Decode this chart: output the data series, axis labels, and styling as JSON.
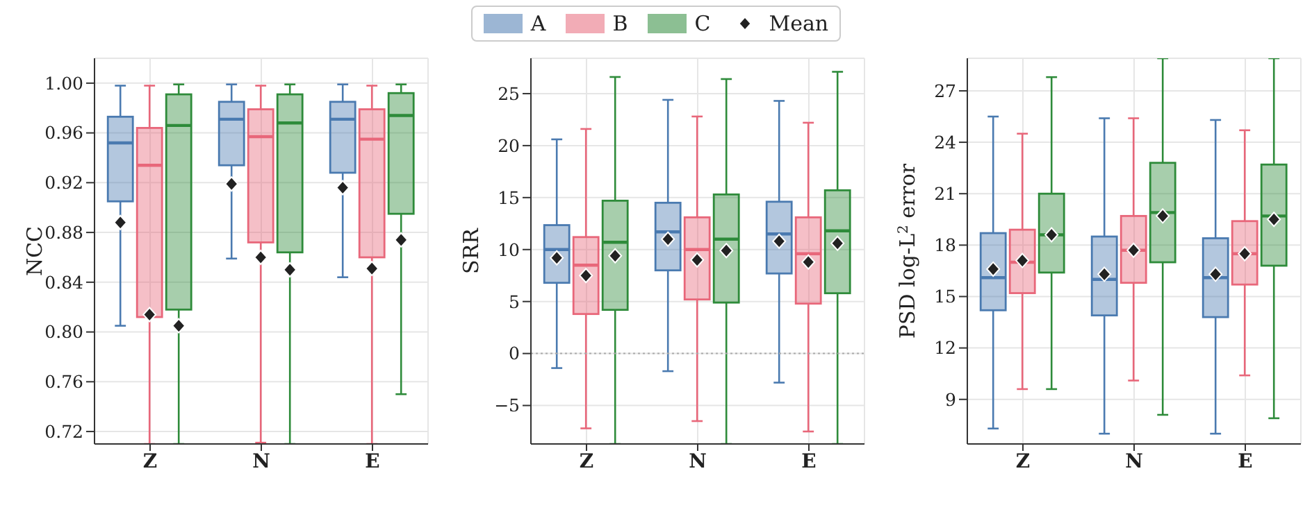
{
  "chart_data": [
    {
      "type": "box",
      "ylabel": "NCC",
      "categories": [
        "Z",
        "N",
        "E"
      ],
      "ylim": [
        0.71,
        1.02
      ],
      "grid": true,
      "legend": "top",
      "yticks": [
        {
          "value": 0.72,
          "label": "0.72"
        },
        {
          "value": 0.76,
          "label": "0.76"
        },
        {
          "value": 0.8,
          "label": "0.80"
        },
        {
          "value": 0.84,
          "label": "0.84"
        },
        {
          "value": 0.88,
          "label": "0.88"
        },
        {
          "value": 0.92,
          "label": "0.92"
        },
        {
          "value": 0.96,
          "label": "0.96"
        },
        {
          "value": 1.0,
          "label": "1.00"
        }
      ],
      "series": [
        {
          "name": "A",
          "color": "#4a7ab0",
          "boxes": [
            {
              "low": 0.805,
              "q1": 0.905,
              "median": 0.952,
              "q3": 0.973,
              "high": 0.998
            },
            {
              "low": 0.859,
              "q1": 0.934,
              "median": 0.971,
              "q3": 0.985,
              "high": 0.999
            },
            {
              "low": 0.844,
              "q1": 0.928,
              "median": 0.971,
              "q3": 0.985,
              "high": 0.999
            }
          ]
        },
        {
          "name": "B",
          "color": "#e8677a",
          "boxes": [
            {
              "low": 0.71,
              "q1": 0.812,
              "median": 0.934,
              "q3": 0.964,
              "high": 0.998
            },
            {
              "low": 0.711,
              "q1": 0.872,
              "median": 0.957,
              "q3": 0.979,
              "high": 0.998
            },
            {
              "low": 0.71,
              "q1": 0.86,
              "median": 0.955,
              "q3": 0.979,
              "high": 0.998
            }
          ]
        },
        {
          "name": "C",
          "color": "#2e8b3a",
          "boxes": [
            {
              "low": 0.71,
              "q1": 0.818,
              "median": 0.966,
              "q3": 0.991,
              "high": 0.999
            },
            {
              "low": 0.71,
              "q1": 0.864,
              "median": 0.968,
              "q3": 0.991,
              "high": 0.999
            },
            {
              "low": 0.75,
              "q1": 0.895,
              "median": 0.974,
              "q3": 0.992,
              "high": 0.999
            }
          ]
        },
        {
          "name": "Mean",
          "type": "scatter",
          "color": "#222222",
          "marker": "diamond",
          "x": [
            "Z",
            "Z",
            "Z",
            "N",
            "N",
            "N",
            "E",
            "E",
            "E"
          ],
          "values": [
            0.888,
            0.814,
            0.805,
            0.919,
            0.86,
            0.85,
            0.916,
            0.851,
            0.874
          ]
        }
      ]
    },
    {
      "type": "box",
      "ylabel": "SRR",
      "categories": [
        "Z",
        "N",
        "E"
      ],
      "ylim": [
        -8.7,
        28.4
      ],
      "grid": true,
      "yticks": [
        {
          "value": -5,
          "label": "−5"
        },
        0,
        5,
        10,
        15,
        20,
        25
      ],
      "ref_lines": [
        {
          "axis": "y",
          "value": 0,
          "color": "#aaaaaa",
          "line_style": "dotted"
        }
      ],
      "series": [
        {
          "name": "A",
          "color": "#4a7ab0",
          "boxes": [
            {
              "low": -1.4,
              "q1": 6.8,
              "median": 10.0,
              "q3": 12.35,
              "high": 20.6
            },
            {
              "low": -1.7,
              "q1": 8.0,
              "median": 11.7,
              "q3": 14.5,
              "high": 24.4
            },
            {
              "low": -2.8,
              "q1": 7.7,
              "median": 11.5,
              "q3": 14.6,
              "high": 24.3
            }
          ]
        },
        {
          "name": "B",
          "color": "#e8677a",
          "boxes": [
            {
              "low": -7.2,
              "q1": 3.8,
              "median": 8.5,
              "q3": 11.2,
              "high": 21.6
            },
            {
              "low": -6.5,
              "q1": 5.2,
              "median": 10.0,
              "q3": 13.1,
              "high": 22.8
            },
            {
              "low": -7.5,
              "q1": 4.8,
              "median": 9.6,
              "q3": 13.1,
              "high": 22.2
            }
          ]
        },
        {
          "name": "C",
          "color": "#2e8b3a",
          "boxes": [
            {
              "low": -8.7,
              "q1": 4.2,
              "median": 10.7,
              "q3": 14.7,
              "high": 26.6
            },
            {
              "low": -8.7,
              "q1": 4.9,
              "median": 11.0,
              "q3": 15.3,
              "high": 26.4
            },
            {
              "low": -8.7,
              "q1": 5.8,
              "median": 11.8,
              "q3": 15.7,
              "high": 27.1
            }
          ]
        },
        {
          "name": "Mean",
          "type": "scatter",
          "color": "#222222",
          "marker": "diamond",
          "x": [
            "Z",
            "Z",
            "Z",
            "N",
            "N",
            "N",
            "E",
            "E",
            "E"
          ],
          "values": [
            9.2,
            7.5,
            9.4,
            11.0,
            9.0,
            9.9,
            10.8,
            8.8,
            10.6
          ]
        }
      ]
    },
    {
      "type": "box",
      "ylabel": "PSD log-L$^{2}$ error",
      "categories": [
        "Z",
        "N",
        "E"
      ],
      "ylim": [
        6.4,
        28.9
      ],
      "grid": true,
      "yticks": [
        9,
        12,
        15,
        18,
        21,
        24,
        27
      ],
      "series": [
        {
          "name": "A",
          "color": "#4a7ab0",
          "boxes": [
            {
              "low": 7.3,
              "q1": 14.2,
              "median": 16.1,
              "q3": 18.7,
              "high": 25.5
            },
            {
              "low": 7.0,
              "q1": 13.9,
              "median": 16.0,
              "q3": 18.5,
              "high": 25.4
            },
            {
              "low": 7.0,
              "q1": 13.8,
              "median": 16.1,
              "q3": 18.4,
              "high": 25.3
            }
          ]
        },
        {
          "name": "B",
          "color": "#e8677a",
          "boxes": [
            {
              "low": 9.6,
              "q1": 15.2,
              "median": 17.0,
              "q3": 18.9,
              "high": 24.5
            },
            {
              "low": 10.1,
              "q1": 15.8,
              "median": 17.7,
              "q3": 19.7,
              "high": 25.4
            },
            {
              "low": 10.4,
              "q1": 15.7,
              "median": 17.5,
              "q3": 19.4,
              "high": 24.7
            }
          ]
        },
        {
          "name": "C",
          "color": "#2e8b3a",
          "boxes": [
            {
              "low": 9.6,
              "q1": 16.4,
              "median": 18.6,
              "q3": 21.0,
              "high": 27.8
            },
            {
              "low": 8.1,
              "q1": 17.0,
              "median": 19.9,
              "q3": 22.8,
              "high": 28.9
            },
            {
              "low": 7.9,
              "q1": 16.8,
              "median": 19.7,
              "q3": 22.7,
              "high": 28.9
            }
          ]
        },
        {
          "name": "Mean",
          "type": "scatter",
          "color": "#222222",
          "marker": "diamond",
          "x": [
            "Z",
            "Z",
            "Z",
            "N",
            "N",
            "N",
            "E",
            "E",
            "E"
          ],
          "values": [
            16.6,
            17.1,
            18.6,
            16.3,
            17.7,
            19.7,
            16.3,
            17.5,
            19.5
          ]
        }
      ]
    }
  ]
}
